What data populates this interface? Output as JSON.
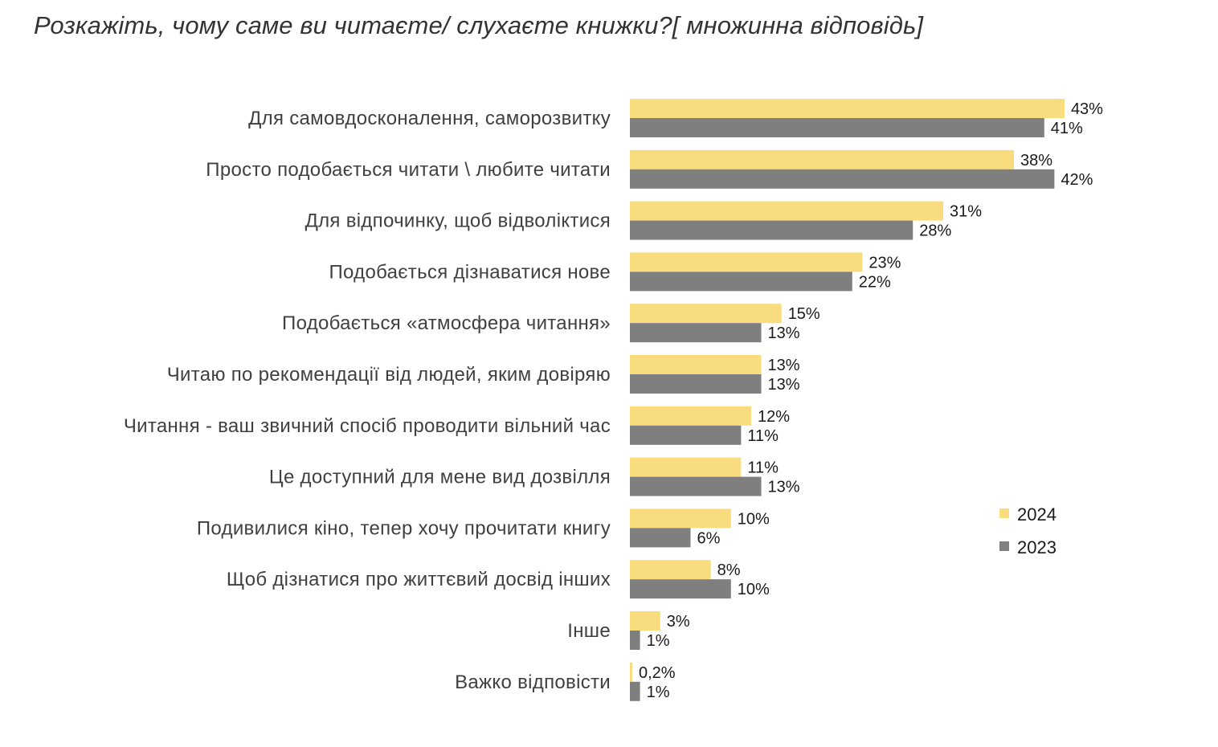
{
  "title": "Розкажіть, чому саме ви читаєте/ слухаєте книжки?[ множинна відповідь]",
  "chart_data": {
    "type": "bar",
    "orientation": "horizontal",
    "title": "Розкажіть, чому саме ви читаєте/ слухаєте книжки?[ множинна відповідь]",
    "categories": [
      "Для самовдосконалення, саморозвитку",
      "Просто подобається читати \\ любите читати",
      "Для відпочинку, щоб відволіктися",
      "Подобається дізнаватися нове",
      "Подобається «атмосфера читання»",
      "Читаю по рекомендації від людей, яким довіряю",
      "Читання - ваш звичний спосіб проводити вільний час",
      "Це доступний для мене вид дозвілля",
      "Подивилися кіно, тепер хочу прочитати книгу",
      "Щоб дізнатися про життєвий досвід інших",
      "Інше",
      "Важко відповісти"
    ],
    "series": [
      {
        "name": "2024",
        "color": "#F9DC7D",
        "values": [
          43,
          38,
          31,
          23,
          15,
          13,
          12,
          11,
          10,
          8,
          3,
          0.2
        ],
        "labels": [
          "43%",
          "38%",
          "31%",
          "23%",
          "15%",
          "13%",
          "12%",
          "11%",
          "10%",
          "8%",
          "3%",
          "0,2%"
        ]
      },
      {
        "name": "2023",
        "color": "#7F7F7F",
        "values": [
          41,
          42,
          28,
          22,
          13,
          13,
          11,
          13,
          6,
          10,
          1,
          1
        ],
        "labels": [
          "41%",
          "42%",
          "28%",
          "22%",
          "13%",
          "13%",
          "11%",
          "13%",
          "6%",
          "10%",
          "1%",
          "1%"
        ]
      }
    ],
    "xlim": [
      0,
      43
    ],
    "grid": false,
    "legend_position": "right"
  }
}
